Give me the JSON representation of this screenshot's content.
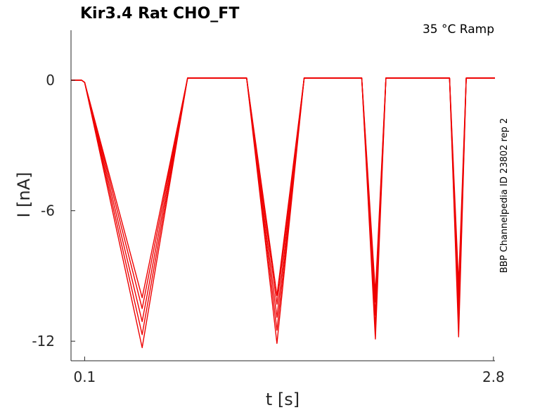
{
  "chart_data": {
    "type": "line",
    "title": "Kir3.4  Rat  CHO_FT",
    "annotation": "35 °C  Ramp",
    "side_note": "BBP Channelpedia ID 23802 rep 2",
    "xlabel": "t [s]",
    "ylabel": "I [nA]",
    "x_ticks": [
      {
        "value": 0.1,
        "label": "0.1"
      },
      {
        "value": 2.8,
        "label": "2.8"
      }
    ],
    "y_ticks": [
      {
        "value": 0,
        "label": "0"
      },
      {
        "value": -6,
        "label": "-6"
      },
      {
        "value": -12,
        "label": "-12"
      }
    ],
    "xlim": [
      0.01,
      2.81
    ],
    "ylim": [
      -12.9,
      2.3
    ],
    "grid": false,
    "color": "#ee0000",
    "series": [
      {
        "x": [
          0.01,
          0.08,
          0.1,
          0.48,
          0.78,
          1.17,
          1.37,
          1.55,
          1.93,
          2.02,
          2.09,
          2.51,
          2.57,
          2.62,
          2.81
        ],
        "y": [
          0.0,
          0.0,
          -0.1,
          -10.0,
          0.1,
          0.1,
          -9.9,
          0.1,
          0.1,
          -9.8,
          0.1,
          0.1,
          -9.4,
          0.1,
          0.1
        ]
      },
      {
        "x": [
          0.01,
          0.08,
          0.1,
          0.48,
          0.78,
          1.17,
          1.37,
          1.55,
          1.93,
          2.02,
          2.09,
          2.51,
          2.57,
          2.62,
          2.81
        ],
        "y": [
          0.0,
          0.0,
          -0.1,
          -10.5,
          0.1,
          0.1,
          -10.3,
          0.1,
          0.1,
          -10.2,
          0.1,
          0.1,
          -10.0,
          0.1,
          0.1
        ]
      },
      {
        "x": [
          0.01,
          0.08,
          0.1,
          0.48,
          0.78,
          1.17,
          1.37,
          1.55,
          1.93,
          2.02,
          2.09,
          2.51,
          2.57,
          2.62,
          2.81
        ],
        "y": [
          0.0,
          0.0,
          -0.1,
          -11.1,
          0.1,
          0.1,
          -10.9,
          0.1,
          0.1,
          -10.8,
          0.1,
          0.1,
          -10.7,
          0.1,
          0.1
        ]
      },
      {
        "x": [
          0.01,
          0.08,
          0.1,
          0.48,
          0.78,
          1.17,
          1.37,
          1.55,
          1.93,
          2.02,
          2.09,
          2.51,
          2.57,
          2.62,
          2.81
        ],
        "y": [
          0.0,
          0.0,
          -0.1,
          -11.7,
          0.1,
          0.1,
          -11.5,
          0.1,
          0.1,
          -11.4,
          0.1,
          0.1,
          -11.3,
          0.1,
          0.1
        ]
      },
      {
        "x": [
          0.01,
          0.08,
          0.1,
          0.48,
          0.78,
          1.17,
          1.37,
          1.55,
          1.93,
          2.02,
          2.09,
          2.51,
          2.57,
          2.62,
          2.81
        ],
        "y": [
          0.0,
          0.0,
          -0.1,
          -12.3,
          0.1,
          0.1,
          -12.1,
          0.1,
          0.1,
          -11.9,
          0.1,
          0.1,
          -11.8,
          0.1,
          0.1
        ]
      }
    ]
  }
}
